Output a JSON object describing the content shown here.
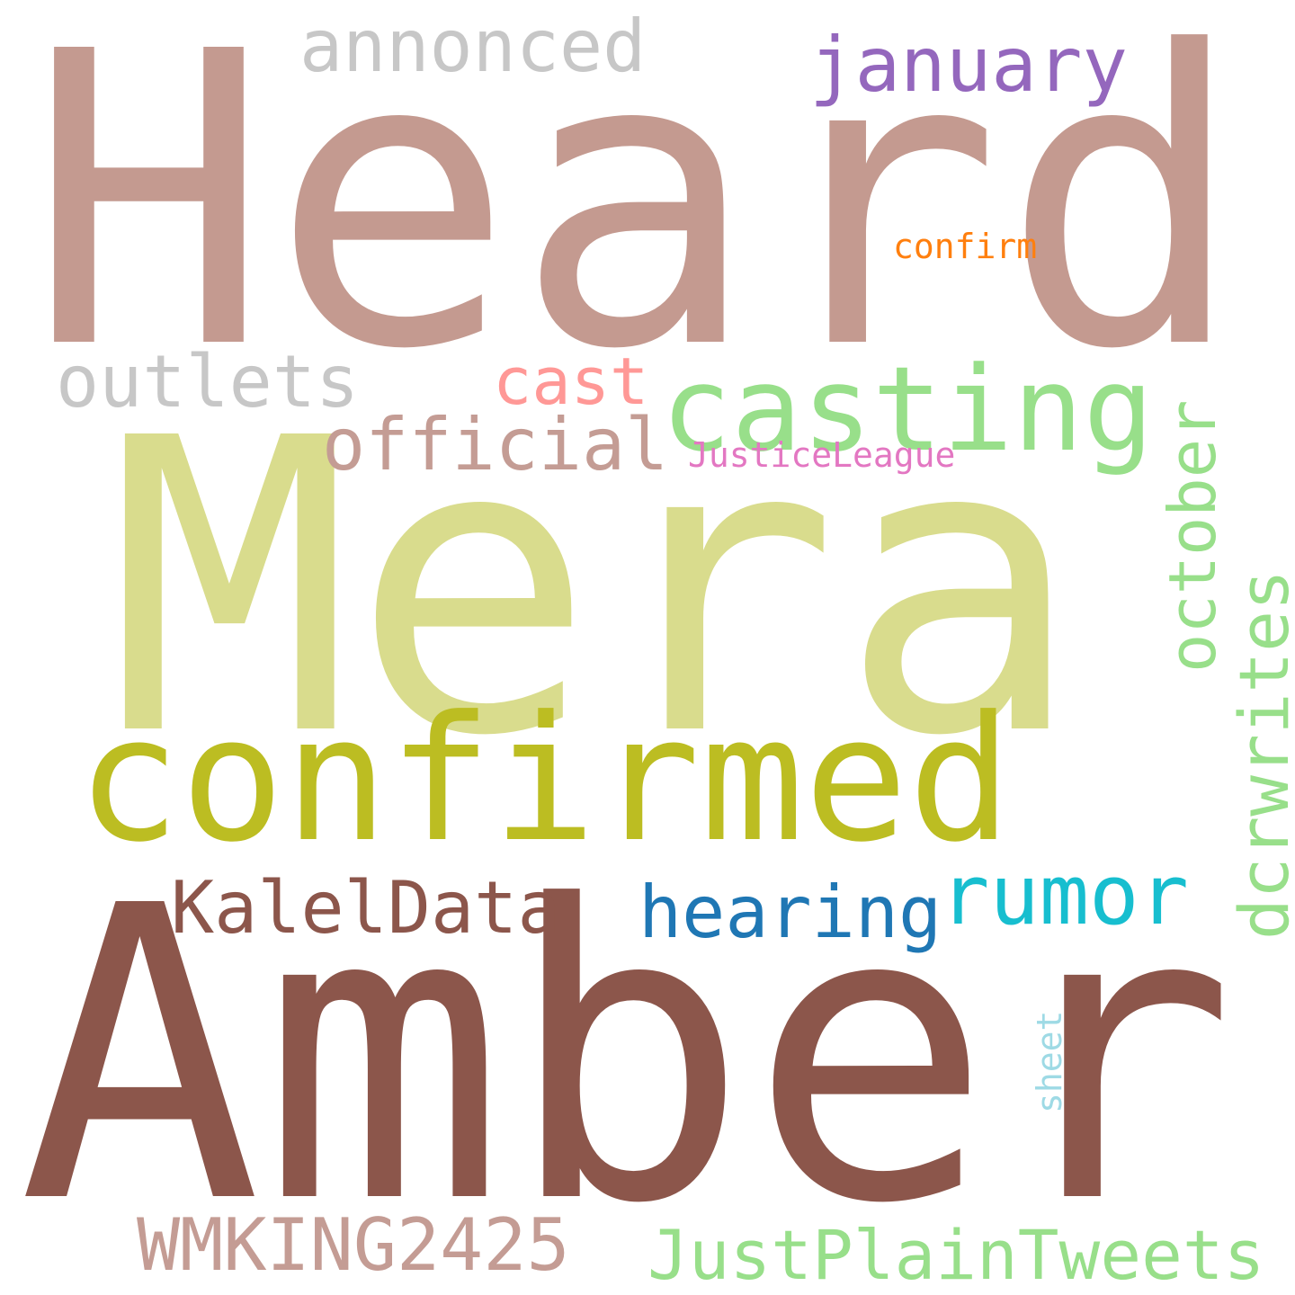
{
  "words": [
    {
      "id": "heard",
      "text": "Heard",
      "color": "#c49a90",
      "vertical": false
    },
    {
      "id": "mera",
      "text": "Mera",
      "color": "#d9dc8d",
      "vertical": false
    },
    {
      "id": "amber",
      "text": "Amber",
      "color": "#8c564b",
      "vertical": false
    },
    {
      "id": "confirmed",
      "text": "confirmed",
      "color": "#bcbd22",
      "vertical": false
    },
    {
      "id": "casting",
      "text": "casting",
      "color": "#98df8a",
      "vertical": false
    },
    {
      "id": "rumor",
      "text": "rumor",
      "color": "#17becf",
      "vertical": false
    },
    {
      "id": "hearing",
      "text": "hearing",
      "color": "#1f77b4",
      "vertical": false
    },
    {
      "id": "kaleldata",
      "text": "KalelData",
      "color": "#8c564b",
      "vertical": false
    },
    {
      "id": "january",
      "text": "january",
      "color": "#9467bd",
      "vertical": false
    },
    {
      "id": "annonced",
      "text": "annonced",
      "color": "#c7c7c7",
      "vertical": false
    },
    {
      "id": "outlets",
      "text": "outlets",
      "color": "#c7c7c7",
      "vertical": false
    },
    {
      "id": "cast",
      "text": "cast",
      "color": "#ff9896",
      "vertical": false
    },
    {
      "id": "official",
      "text": "official",
      "color": "#c49c94",
      "vertical": false
    },
    {
      "id": "justiceleague",
      "text": "JusticeLeague",
      "color": "#e377c2",
      "vertical": false
    },
    {
      "id": "confirm",
      "text": "confirm",
      "color": "#ff7f0e",
      "vertical": false
    },
    {
      "id": "october",
      "text": "october",
      "color": "#98df8a",
      "vertical": true
    },
    {
      "id": "dcrwrites",
      "text": "dcrwrites",
      "color": "#98df8a",
      "vertical": true
    },
    {
      "id": "sheet",
      "text": "sheet",
      "color": "#9edae5",
      "vertical": true
    },
    {
      "id": "wmking2425",
      "text": "WMKING2425",
      "color": "#c49c94",
      "vertical": false
    },
    {
      "id": "justplaintweets",
      "text": "JustPlainTweets",
      "color": "#98df8a",
      "vertical": false
    }
  ]
}
